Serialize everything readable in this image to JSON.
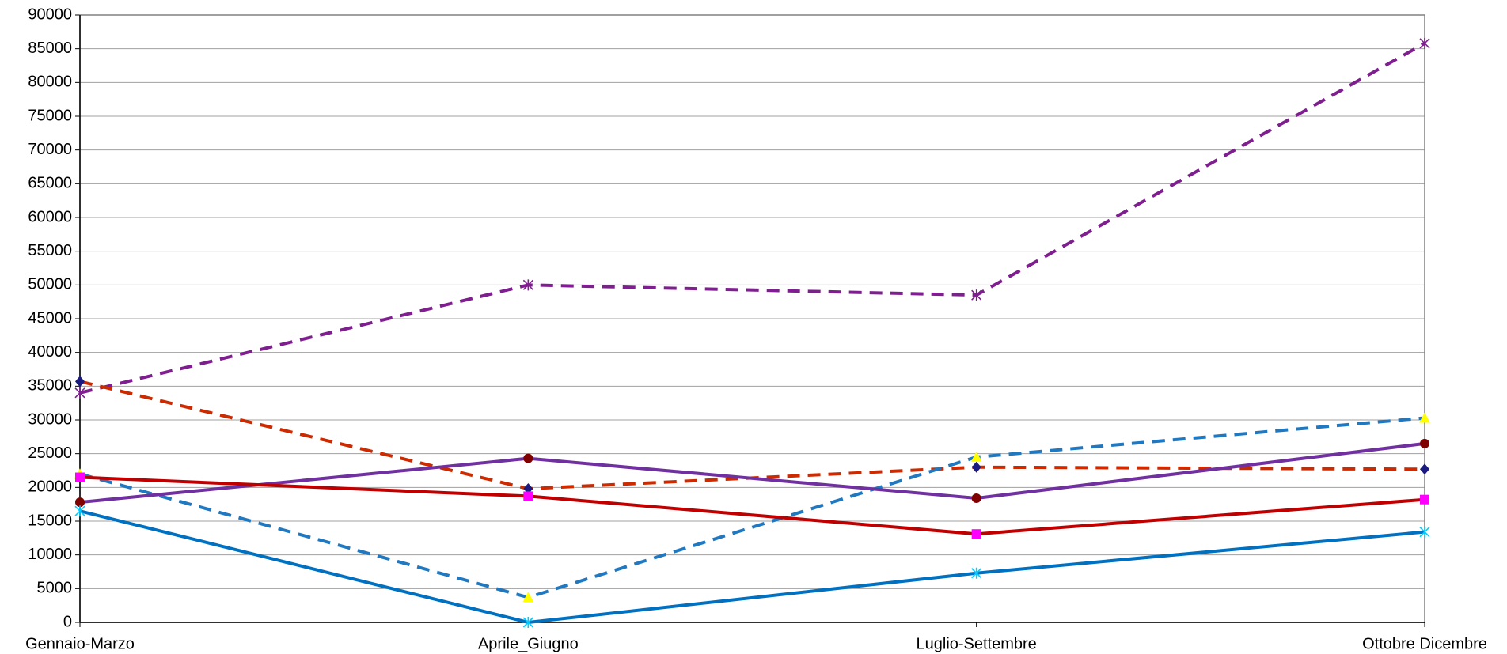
{
  "chart_data": {
    "type": "line",
    "categories": [
      "Gennaio-Marzo",
      "Aprile_Giugno",
      "Luglio-Settembre",
      "Ottobre Dicembre"
    ],
    "series": [
      {
        "color": "#7f1f8f",
        "dash": true,
        "marker": "star",
        "marker_color": "#7f1f8f",
        "values": [
          34000,
          50000,
          48500,
          85800
        ]
      },
      {
        "color": "#cc2a00",
        "dash": true,
        "marker": "diamond",
        "marker_color": "#1a1a80",
        "values": [
          35700,
          19800,
          23000,
          22700
        ]
      },
      {
        "color": "#1f78c0",
        "dash": true,
        "marker": "triangle",
        "marker_color": "#ffff00",
        "values": [
          22000,
          3700,
          24500,
          30300
        ]
      },
      {
        "color": "#7030a0",
        "dash": false,
        "marker": "circle",
        "marker_color": "#800000",
        "values": [
          17800,
          24300,
          18400,
          26500
        ]
      },
      {
        "color": "#c00000",
        "dash": false,
        "marker": "square",
        "marker_color": "#ff00ff",
        "values": [
          21500,
          18700,
          13100,
          18200
        ]
      },
      {
        "color": "#0070c0",
        "dash": false,
        "marker": "star",
        "marker_color": "#00ccff",
        "values": [
          16500,
          0,
          7300,
          13400
        ]
      }
    ],
    "ylim": [
      0,
      90000
    ],
    "yticks": [
      0,
      5000,
      10000,
      15000,
      20000,
      25000,
      30000,
      35000,
      40000,
      45000,
      50000,
      55000,
      60000,
      65000,
      70000,
      75000,
      80000,
      85000,
      90000
    ],
    "grid": true
  }
}
